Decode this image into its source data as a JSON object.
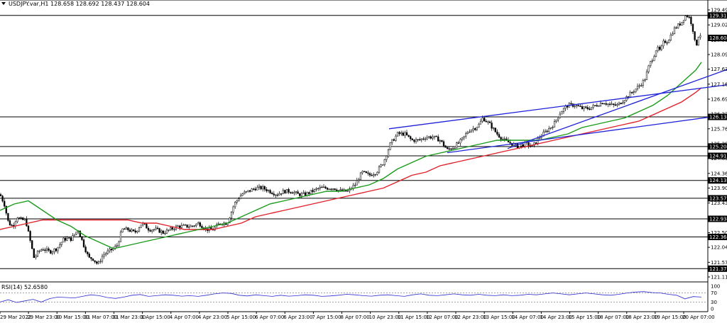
{
  "chart_data": {
    "type": "candlestick",
    "symbol_header": "USDJPY.var,H1  128.658 128.692 128.437 128.604",
    "current_price_label": "128.604",
    "price_ticks": [
      "129.490",
      "129.020",
      "128.550",
      "128.090",
      "127.630",
      "127.160",
      "126.690",
      "126.220",
      "125.760",
      "125.290",
      "124.830",
      "124.360",
      "123.900",
      "123.430",
      "122.960",
      "122.500",
      "122.040",
      "121.570",
      "121.110"
    ],
    "x_ticks": [
      "29 Mar 2022",
      "29 Mar 23:00",
      "30 Mar 15:00",
      "31 Mar 07:00",
      "31 Mar 23:00",
      "1 Apr 15:00",
      "4 Apr 07:00",
      "4 Apr 23:00",
      "5 Apr 15:00",
      "6 Apr 07:00",
      "6 Apr 23:00",
      "7 Apr 15:00",
      "8 Apr 07:00",
      "10 Apr 23:00",
      "11 Apr 15:00",
      "12 Apr 07:00",
      "12 Apr 23:00",
      "13 Apr 15:00",
      "14 Apr 07:00",
      "14 Apr 23:00",
      "15 Apr 15:00",
      "18 Apr 07:00",
      "18 Apr 23:00",
      "19 Apr 15:00",
      "20 Apr 07:00"
    ],
    "levels": [
      {
        "label": "129.317",
        "value": 129.317
      },
      {
        "label": "126.133",
        "value": 126.133
      },
      {
        "label": "125.204",
        "value": 125.204
      },
      {
        "label": "124.911",
        "value": 124.911
      },
      {
        "label": "124.139",
        "value": 124.139
      },
      {
        "label": "123.579",
        "value": 123.579
      },
      {
        "label": "122.934",
        "value": 122.934
      },
      {
        "label": "122.365",
        "value": 122.365
      },
      {
        "label": "121.370",
        "value": 121.37
      }
    ],
    "price_path": [
      [
        0,
        123.7
      ],
      [
        6,
        123.4
      ],
      [
        12,
        122.8
      ],
      [
        18,
        122.7
      ],
      [
        24,
        123.0
      ],
      [
        30,
        122.9
      ],
      [
        36,
        122.9
      ],
      [
        42,
        122.3
      ],
      [
        48,
        121.7
      ],
      [
        54,
        121.9
      ],
      [
        60,
        122.0
      ],
      [
        70,
        121.9
      ],
      [
        80,
        122.0
      ],
      [
        90,
        122.3
      ],
      [
        100,
        122.3
      ],
      [
        110,
        122.6
      ],
      [
        118,
        122.1
      ],
      [
        125,
        121.7
      ],
      [
        130,
        121.7
      ],
      [
        138,
        121.5
      ],
      [
        145,
        121.8
      ],
      [
        152,
        121.9
      ],
      [
        160,
        122.0
      ],
      [
        165,
        122.1
      ],
      [
        172,
        122.6
      ],
      [
        180,
        122.6
      ],
      [
        190,
        122.5
      ],
      [
        200,
        122.8
      ],
      [
        210,
        122.6
      ],
      [
        220,
        122.6
      ],
      [
        230,
        122.5
      ],
      [
        240,
        122.6
      ],
      [
        250,
        122.7
      ],
      [
        260,
        122.7
      ],
      [
        270,
        122.7
      ],
      [
        280,
        122.8
      ],
      [
        290,
        122.6
      ],
      [
        300,
        122.6
      ],
      [
        310,
        122.8
      ],
      [
        320,
        122.8
      ],
      [
        330,
        123.4
      ],
      [
        340,
        123.7
      ],
      [
        350,
        123.8
      ],
      [
        360,
        123.9
      ],
      [
        370,
        123.9
      ],
      [
        380,
        123.8
      ],
      [
        390,
        123.7
      ],
      [
        400,
        123.8
      ],
      [
        410,
        123.8
      ],
      [
        420,
        123.7
      ],
      [
        430,
        123.7
      ],
      [
        440,
        123.8
      ],
      [
        450,
        123.9
      ],
      [
        460,
        123.9
      ],
      [
        470,
        123.9
      ],
      [
        480,
        123.8
      ],
      [
        490,
        123.8
      ],
      [
        500,
        124.0
      ],
      [
        510,
        124.4
      ],
      [
        520,
        124.3
      ],
      [
        530,
        124.4
      ],
      [
        540,
        124.7
      ],
      [
        550,
        125.3
      ],
      [
        560,
        125.6
      ],
      [
        570,
        125.6
      ],
      [
        580,
        125.4
      ],
      [
        590,
        125.4
      ],
      [
        600,
        125.5
      ],
      [
        610,
        125.5
      ],
      [
        620,
        125.4
      ],
      [
        630,
        125.1
      ],
      [
        640,
        125.2
      ],
      [
        650,
        125.4
      ],
      [
        660,
        125.7
      ],
      [
        670,
        125.8
      ],
      [
        675,
        125.9
      ],
      [
        680,
        126.1
      ],
      [
        690,
        125.9
      ],
      [
        700,
        125.6
      ],
      [
        710,
        125.4
      ],
      [
        720,
        125.3
      ],
      [
        730,
        125.2
      ],
      [
        740,
        125.3
      ],
      [
        750,
        125.2
      ],
      [
        760,
        125.5
      ],
      [
        770,
        125.7
      ],
      [
        780,
        125.9
      ],
      [
        790,
        126.3
      ],
      [
        800,
        126.5
      ],
      [
        810,
        126.5
      ],
      [
        820,
        126.4
      ],
      [
        830,
        126.4
      ],
      [
        840,
        126.5
      ],
      [
        850,
        126.6
      ],
      [
        860,
        126.5
      ],
      [
        870,
        126.5
      ],
      [
        880,
        126.7
      ],
      [
        890,
        126.9
      ],
      [
        900,
        127.1
      ],
      [
        908,
        127.3
      ],
      [
        915,
        127.8
      ],
      [
        920,
        128.0
      ],
      [
        925,
        128.3
      ],
      [
        930,
        128.2
      ],
      [
        935,
        128.5
      ],
      [
        940,
        128.5
      ],
      [
        945,
        128.7
      ],
      [
        950,
        128.9
      ],
      [
        955,
        129.0
      ],
      [
        960,
        129.1
      ],
      [
        965,
        129.3
      ],
      [
        970,
        129.3
      ],
      [
        975,
        129.0
      ],
      [
        980,
        128.3
      ],
      [
        985,
        128.8
      ],
      [
        988,
        128.6
      ]
    ],
    "ma_green": [
      [
        0,
        123.2
      ],
      [
        20,
        123.4
      ],
      [
        40,
        123.5
      ],
      [
        60,
        123.2
      ],
      [
        80,
        122.9
      ],
      [
        100,
        122.7
      ],
      [
        120,
        122.4
      ],
      [
        140,
        122.2
      ],
      [
        160,
        122.0
      ],
      [
        180,
        122.1
      ],
      [
        200,
        122.2
      ],
      [
        220,
        122.3
      ],
      [
        240,
        122.4
      ],
      [
        260,
        122.5
      ],
      [
        280,
        122.6
      ],
      [
        300,
        122.7
      ],
      [
        320,
        122.8
      ],
      [
        340,
        123.0
      ],
      [
        360,
        123.2
      ],
      [
        380,
        123.4
      ],
      [
        400,
        123.5
      ],
      [
        420,
        123.6
      ],
      [
        440,
        123.7
      ],
      [
        460,
        123.8
      ],
      [
        480,
        123.8
      ],
      [
        500,
        123.9
      ],
      [
        520,
        124.0
      ],
      [
        540,
        124.2
      ],
      [
        560,
        124.5
      ],
      [
        580,
        124.7
      ],
      [
        600,
        124.9
      ],
      [
        620,
        125.0
      ],
      [
        640,
        125.1
      ],
      [
        660,
        125.2
      ],
      [
        680,
        125.3
      ],
      [
        700,
        125.4
      ],
      [
        720,
        125.4
      ],
      [
        740,
        125.4
      ],
      [
        760,
        125.4
      ],
      [
        780,
        125.5
      ],
      [
        800,
        125.6
      ],
      [
        820,
        125.8
      ],
      [
        840,
        125.9
      ],
      [
        860,
        126.0
      ],
      [
        880,
        126.1
      ],
      [
        900,
        126.3
      ],
      [
        920,
        126.5
      ],
      [
        940,
        126.8
      ],
      [
        960,
        127.2
      ],
      [
        980,
        127.6
      ],
      [
        988,
        127.85
      ]
    ],
    "ma_red": [
      [
        0,
        122.6
      ],
      [
        20,
        122.7
      ],
      [
        40,
        122.8
      ],
      [
        60,
        122.9
      ],
      [
        80,
        122.9
      ],
      [
        100,
        122.9
      ],
      [
        120,
        122.9
      ],
      [
        140,
        122.9
      ],
      [
        160,
        122.9
      ],
      [
        180,
        122.9
      ],
      [
        200,
        122.8
      ],
      [
        220,
        122.8
      ],
      [
        240,
        122.7
      ],
      [
        260,
        122.6
      ],
      [
        280,
        122.6
      ],
      [
        300,
        122.6
      ],
      [
        320,
        122.7
      ],
      [
        340,
        122.8
      ],
      [
        360,
        123.0
      ],
      [
        380,
        123.1
      ],
      [
        400,
        123.2
      ],
      [
        420,
        123.3
      ],
      [
        440,
        123.4
      ],
      [
        460,
        123.5
      ],
      [
        480,
        123.6
      ],
      [
        500,
        123.7
      ],
      [
        520,
        123.8
      ],
      [
        540,
        123.9
      ],
      [
        560,
        124.1
      ],
      [
        580,
        124.3
      ],
      [
        600,
        124.4
      ],
      [
        620,
        124.6
      ],
      [
        640,
        124.7
      ],
      [
        660,
        124.8
      ],
      [
        680,
        124.9
      ],
      [
        700,
        125.0
      ],
      [
        720,
        125.1
      ],
      [
        740,
        125.2
      ],
      [
        760,
        125.3
      ],
      [
        780,
        125.4
      ],
      [
        800,
        125.5
      ],
      [
        820,
        125.6
      ],
      [
        840,
        125.7
      ],
      [
        860,
        125.8
      ],
      [
        880,
        125.9
      ],
      [
        900,
        126.0
      ],
      [
        920,
        126.2
      ],
      [
        940,
        126.4
      ],
      [
        960,
        126.6
      ],
      [
        980,
        126.9
      ],
      [
        988,
        127.05
      ]
    ],
    "trendlines": [
      {
        "from": [
          548,
          125.76
        ],
        "to": [
          1024,
          127.14
        ]
      },
      {
        "from": [
          630,
          125.01
        ],
        "to": [
          1024,
          126.2
        ]
      },
      {
        "from": [
          715,
          125.14
        ],
        "to": [
          1024,
          127.62
        ]
      }
    ],
    "rsi": {
      "label": "RSI(14) 52.6580",
      "levels": [
        "100",
        "70",
        "30",
        "0"
      ],
      "values": [
        30,
        40,
        28,
        35,
        42,
        30,
        45,
        52,
        50,
        48,
        55,
        62,
        58,
        50,
        46,
        52,
        60,
        63,
        55,
        58,
        62,
        60,
        56,
        58,
        55,
        60,
        66,
        70,
        68,
        60,
        57,
        62,
        58,
        55,
        60,
        56,
        58,
        62,
        60,
        55,
        57,
        60,
        64,
        62,
        58,
        56,
        60,
        62,
        58,
        55,
        62,
        66,
        60,
        58,
        62,
        66,
        62,
        60,
        64,
        60,
        58,
        62,
        58,
        60,
        64,
        62,
        66,
        70,
        66,
        62,
        66,
        70,
        66,
        62,
        60,
        64,
        70,
        74,
        76,
        72,
        70,
        64,
        60,
        44,
        54,
        52
      ]
    }
  }
}
